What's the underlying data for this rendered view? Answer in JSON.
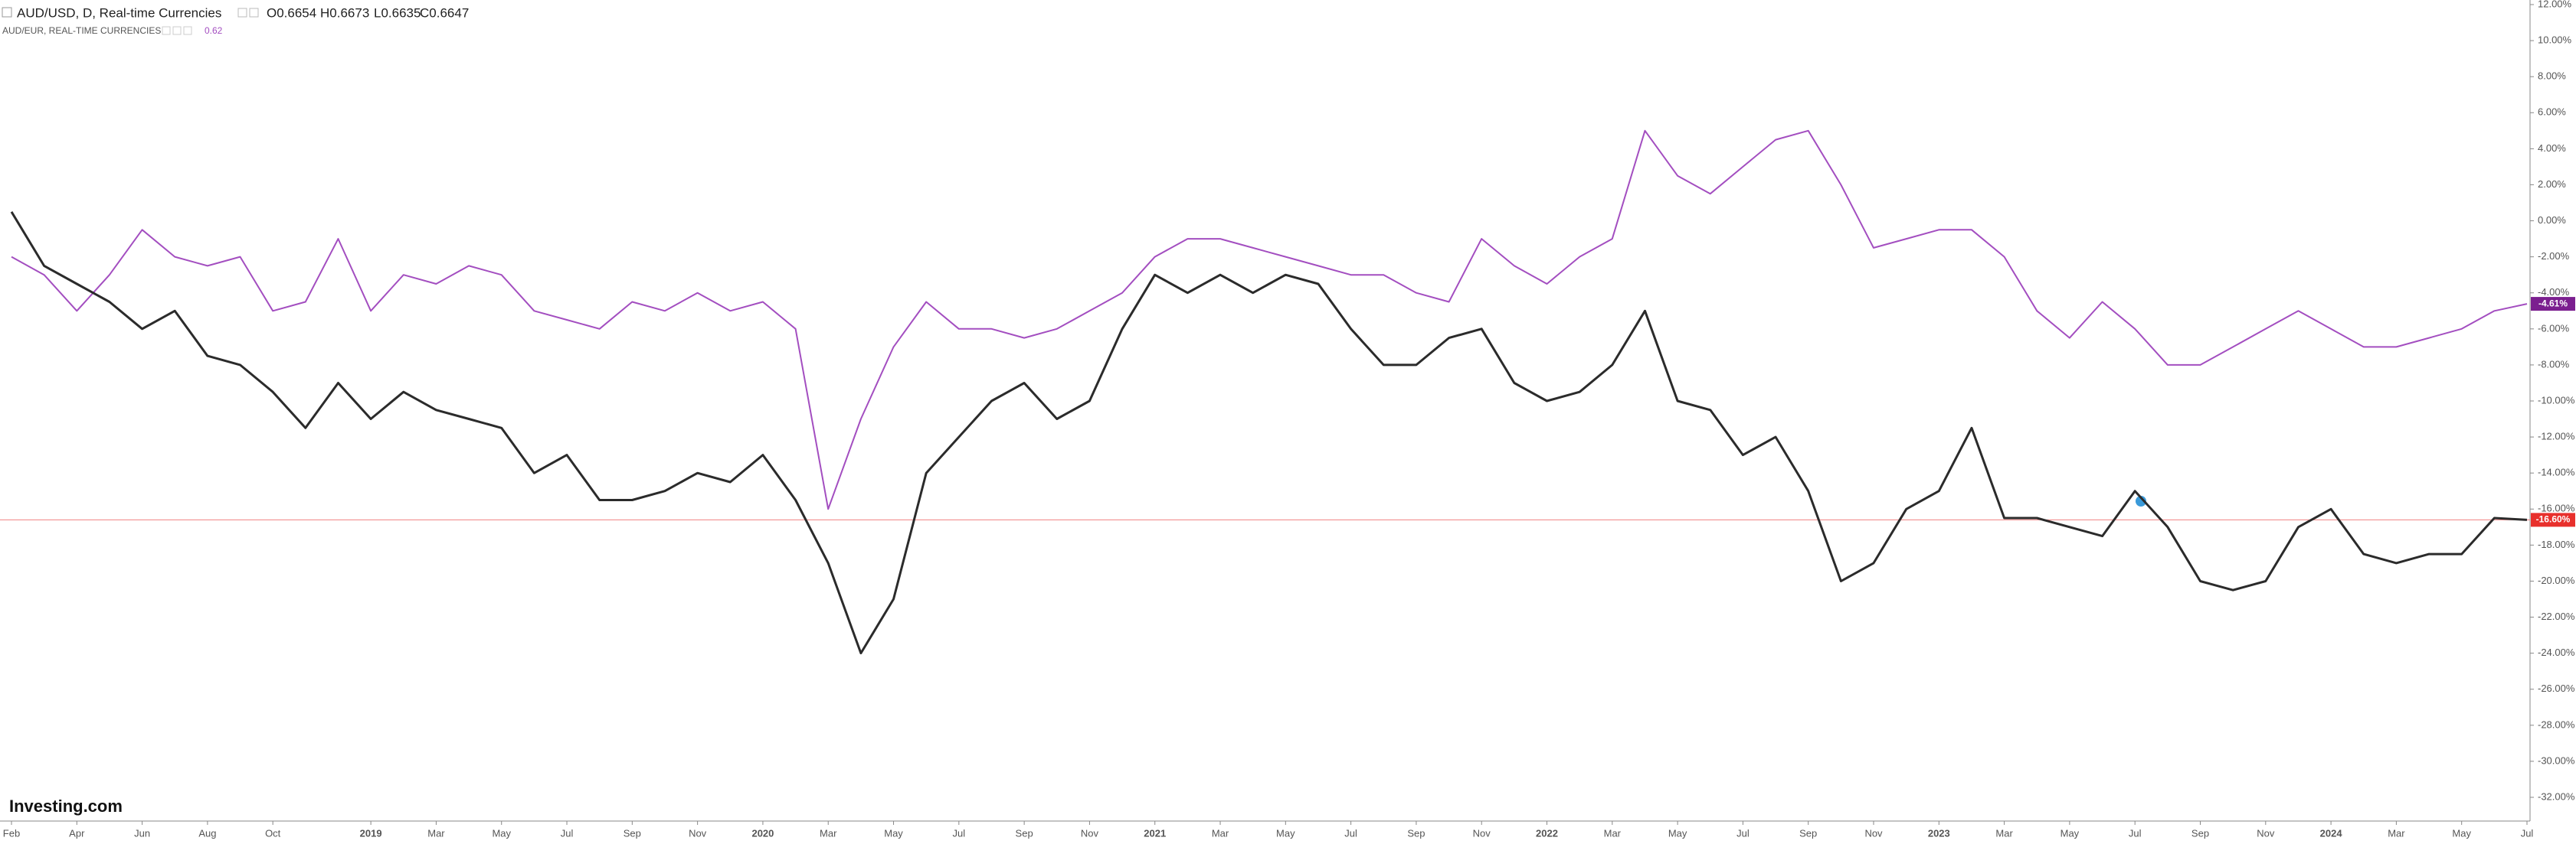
{
  "chart_data": {
    "type": "line",
    "title": "AUD/USD, D, Real-time Currencies",
    "ohlc": [
      "O0.6654",
      "H0.6673",
      "L0.6635",
      "C0.6647"
    ],
    "compare_title": "AUD/EUR, REAL-TIME CURRENCIES",
    "compare_value": "0.62",
    "logo": "Investing.com",
    "categories": [
      "Feb",
      null,
      "Apr",
      null,
      "Jun",
      null,
      "Aug",
      null,
      "Oct",
      null,
      null,
      "2019",
      null,
      "Mar",
      null,
      "May",
      null,
      "Jul",
      null,
      "Sep",
      null,
      "Nov",
      null,
      "2020",
      null,
      "Mar",
      null,
      "May",
      null,
      "Jul",
      null,
      "Sep",
      null,
      "Nov",
      null,
      "2021",
      null,
      "Mar",
      null,
      "May",
      null,
      "Jul",
      null,
      "Sep",
      null,
      "Nov",
      null,
      "2022",
      null,
      "Mar",
      null,
      "May",
      null,
      "Jul",
      null,
      "Sep",
      null,
      "Nov",
      null,
      "2023",
      null,
      "Mar",
      null,
      "May",
      null,
      "Jul",
      null,
      "Sep",
      null,
      "Nov",
      null,
      "2024",
      null,
      "Mar",
      null,
      "May",
      null,
      "Jul"
    ],
    "series": [
      {
        "name": "AUD/USD",
        "color": "#2b2b2b",
        "last_label": "-16.60%",
        "tag_color": "#e8302c",
        "values": [
          0.5,
          -2.5,
          -3.5,
          -4.5,
          -6,
          -5,
          -7.5,
          -8,
          -9.5,
          -11.5,
          -9,
          -11,
          -9.5,
          -10.5,
          -11,
          -11.5,
          -14,
          -13,
          -15.5,
          -15.5,
          -15,
          -14,
          -14.5,
          -13,
          -15.5,
          -19,
          -24,
          -21,
          -14,
          -12,
          -10,
          -9,
          -11,
          -10,
          -6,
          -3,
          -4,
          -3,
          -4,
          -3,
          -3.5,
          -6,
          -8,
          -8,
          -6.5,
          -6,
          -9,
          -10,
          -9.5,
          -8,
          -5,
          -10,
          -10.5,
          -13,
          -12,
          -15,
          -20,
          -19,
          -16,
          -15,
          -11.5,
          -16.5,
          -16.5,
          -17,
          -17.5,
          -15,
          -17,
          -20,
          -20.5,
          -20,
          -17,
          -16,
          -18.5,
          -19,
          -18.5,
          -18.5,
          -16.5,
          -16.6
        ]
      },
      {
        "name": "AUD/EUR",
        "color": "#a34ec0",
        "last_label": "-4.61%",
        "tag_color": "#7b1f8f",
        "values": [
          -2,
          -3,
          -5,
          -3,
          -0.5,
          -2,
          -2.5,
          -2,
          -5,
          -4.5,
          -1,
          -5,
          -3,
          -3.5,
          -2.5,
          -3,
          -5,
          -5.5,
          -6,
          -4.5,
          -5,
          -4,
          -5,
          -4.5,
          -6,
          -16,
          -11,
          -7,
          -4.5,
          -6,
          -6,
          -6.5,
          -6,
          -5,
          -4,
          -2,
          -1,
          -1,
          -1.5,
          -2,
          -2.5,
          -3,
          -3,
          -4,
          -4.5,
          -1,
          -2.5,
          -3.5,
          -2,
          -1,
          5,
          2.5,
          1.5,
          3,
          4.5,
          5,
          2,
          -1.5,
          -1,
          -0.5,
          -0.5,
          -2,
          -5,
          -6.5,
          -4.5,
          -6,
          -8,
          -8,
          -7,
          -6,
          -5,
          -6,
          -7,
          -7,
          -6.5,
          -6,
          -5,
          -4.61
        ]
      }
    ],
    "ylim": [
      -32,
      12
    ],
    "yticks": [
      {
        "value": 12,
        "label": "12.00%"
      },
      {
        "value": 10,
        "label": "10.00%"
      },
      {
        "value": 8,
        "label": "8.00%"
      },
      {
        "value": 6,
        "label": "6.00%"
      },
      {
        "value": 4,
        "label": "4.00%"
      },
      {
        "value": 2,
        "label": "2.00%"
      },
      {
        "value": 0,
        "label": "0.00%"
      },
      {
        "value": -2,
        "label": "-2.00%"
      },
      {
        "value": -4,
        "label": "-4.00%"
      },
      {
        "value": -6,
        "label": "-6.00%"
      },
      {
        "value": -8,
        "label": "-8.00%"
      },
      {
        "value": -10,
        "label": "-10.00%"
      },
      {
        "value": -12,
        "label": "-12.00%"
      },
      {
        "value": -14,
        "label": "-14.00%"
      },
      {
        "value": -16,
        "label": "-16.00%"
      },
      {
        "value": -18,
        "label": "-18.00%"
      },
      {
        "value": -20,
        "label": "-20.00%"
      },
      {
        "value": -22,
        "label": "-22.00%"
      },
      {
        "value": -24,
        "label": "-24.00%"
      },
      {
        "value": -26,
        "label": "-26.00%"
      },
      {
        "value": -28,
        "label": "-28.00%"
      },
      {
        "value": -30,
        "label": "-30.00%"
      },
      {
        "value": -32,
        "label": "-32.00%"
      }
    ],
    "grid": false
  }
}
